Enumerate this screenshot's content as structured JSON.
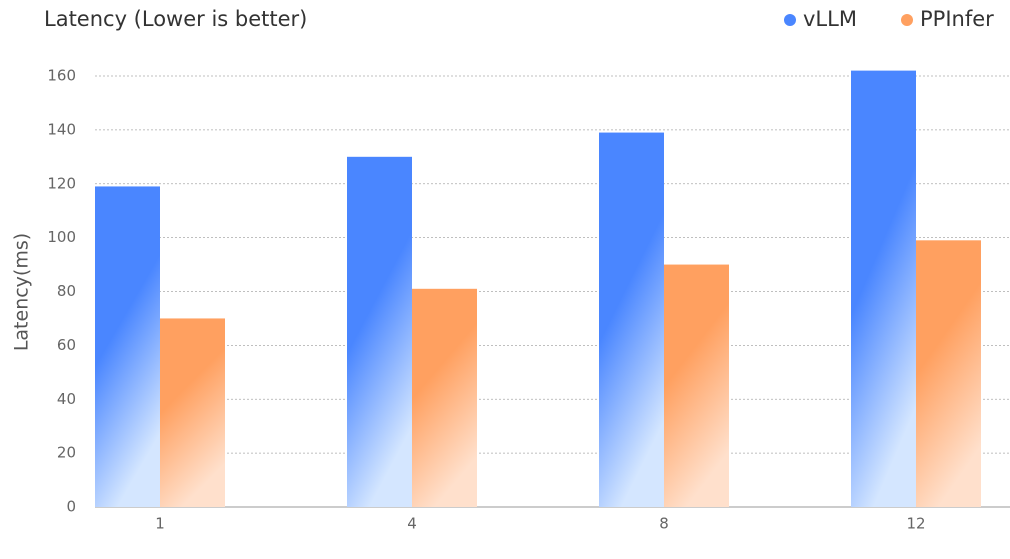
{
  "chart_data": {
    "type": "bar",
    "title": "Latency (Lower is better)",
    "y_label": "Latency(ms)",
    "categories": [
      "1",
      "4",
      "8",
      "12"
    ],
    "series": [
      {
        "name": "vLLM",
        "color": "#4a86ff",
        "values": [
          119,
          130,
          139,
          162
        ]
      },
      {
        "name": "PPInfer",
        "color": "#ffa060",
        "values": [
          70,
          81,
          90,
          99
        ]
      }
    ],
    "ylim": [
      0,
      160
    ],
    "yticks": [
      0,
      20,
      40,
      60,
      80,
      100,
      120,
      140,
      160
    ],
    "grid": true,
    "legend": "top-right"
  }
}
